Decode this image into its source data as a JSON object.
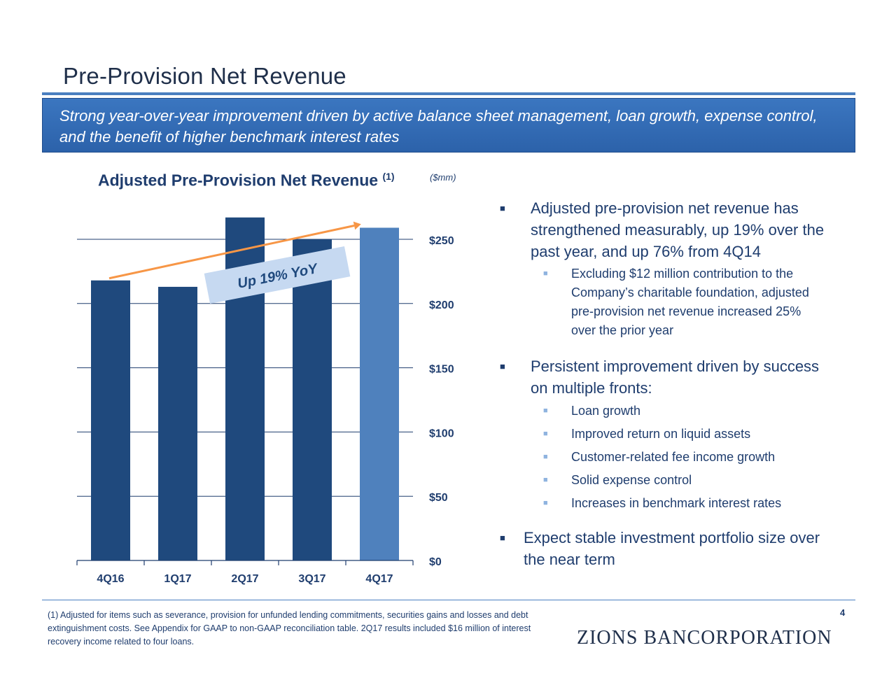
{
  "slide": {
    "title": "Pre-Provision Net Revenue",
    "banner": "Strong year-over-year improvement driven by active balance sheet management, loan growth, expense control, and the benefit of higher benchmark interest rates",
    "page_number": "4",
    "logo": "ZIONS BANCORPORATION",
    "footnote": "(1) Adjusted for items such as severance, provision for unfunded lending commitments, securities gains and losses and debt extinguishment costs.  See Appendix for GAAP to non-GAAP reconciliation table. 2Q17 results included $16 million of interest recovery income related to four loans."
  },
  "chart_header": {
    "title": "Adjusted Pre-Provision Net Revenue",
    "superscript": "(1)",
    "units": "($mm)"
  },
  "chart_data": {
    "type": "bar",
    "title": "Adjusted Pre-Provision Net Revenue (1)",
    "units": "($mm)",
    "categories": [
      "4Q16",
      "1Q17",
      "2Q17",
      "3Q17",
      "4Q17"
    ],
    "values": [
      218,
      213,
      267,
      250,
      259
    ],
    "ylim": [
      0,
      250
    ],
    "yticks": [
      0,
      50,
      100,
      150,
      200,
      250
    ],
    "ytick_labels": [
      "$0",
      "$50",
      "$100",
      "$150",
      "$200",
      "$250"
    ],
    "axis_side": "right",
    "grid": true,
    "colors": {
      "bar": "#1f497d",
      "highlight": "#4f81bd",
      "trend": "#f79646",
      "callout_bg": "#c6d9f1"
    },
    "highlight_index": 4,
    "annotation": "Up 19% YoY"
  },
  "bullets": {
    "b1": "Adjusted pre-provision net revenue has strengthened measurably, up 19% over the past year, and up 76% from 4Q14",
    "b1_sub": "Excluding $12 million contribution to the Company’s charitable foundation, adjusted pre-provision net revenue increased 25% over the prior year",
    "b2": "Persistent improvement driven by success on multiple fronts:",
    "b2_subs": [
      "Loan growth",
      "Improved return on liquid assets",
      "Customer-related fee income growth",
      "Solid expense control",
      "Increases in benchmark interest rates"
    ],
    "b3": "Expect stable investment portfolio size over the near term"
  }
}
